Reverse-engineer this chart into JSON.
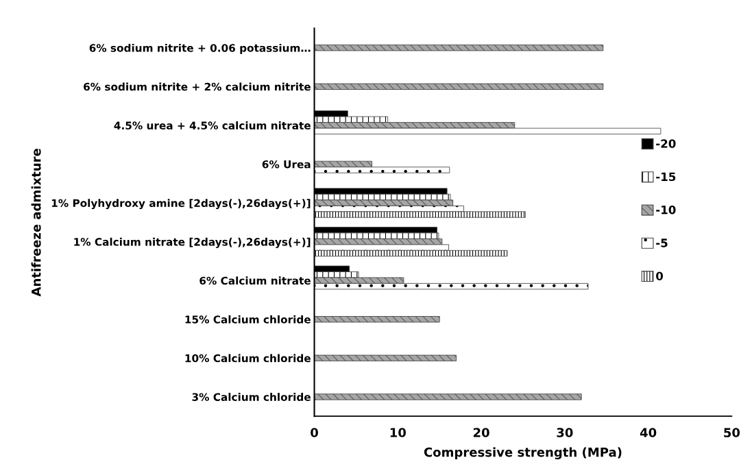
{
  "chart_data": {
    "type": "bar",
    "orientation": "horizontal",
    "xlabel": "Compressive strength (MPa)",
    "ylabel": "Antifreeze admixture",
    "categories": [
      "6% sodium nitrite + 0.06 potassium…",
      "6% sodium nitrite + 2% calcium nitrite",
      "4.5% urea + 4.5% calcium nitrate",
      "6% Urea",
      "1% Polyhydroxy amine [2days(-),26days(+)]",
      "1% Calcium nitrate [2days(-),26days(+)]",
      "6% Calcium nitrate",
      "15% Calcium chloride",
      "10% Calcium chloride",
      "3% Calcium chloride"
    ],
    "series": [
      {
        "name": "-20",
        "color": "#000000",
        "values": [
          null,
          null,
          4.0,
          null,
          15.9,
          14.7,
          4.2,
          null,
          null,
          null
        ]
      },
      {
        "name": "-15",
        "color": "#ffffff",
        "values": [
          null,
          null,
          8.8,
          null,
          16.3,
          14.9,
          5.3,
          null,
          null,
          null
        ]
      },
      {
        "name": "-10",
        "color": "#a6a6a6",
        "values": [
          34.6,
          34.6,
          24.0,
          6.9,
          16.6,
          15.3,
          10.7,
          15.0,
          17.0,
          32.0
        ]
      },
      {
        "name": "-5",
        "color": "#ffffff",
        "values": [
          null,
          null,
          41.5,
          16.2,
          17.9,
          16.1,
          32.8,
          null,
          null,
          null
        ]
      },
      {
        "name": "0",
        "color": "#ffffff",
        "values": [
          null,
          null,
          null,
          null,
          25.3,
          23.1,
          null,
          null,
          null,
          null
        ]
      }
    ],
    "xlim": [
      0,
      50
    ],
    "xticks": [
      0,
      10,
      20,
      30,
      40,
      50
    ],
    "grid": false,
    "legend": "right"
  }
}
